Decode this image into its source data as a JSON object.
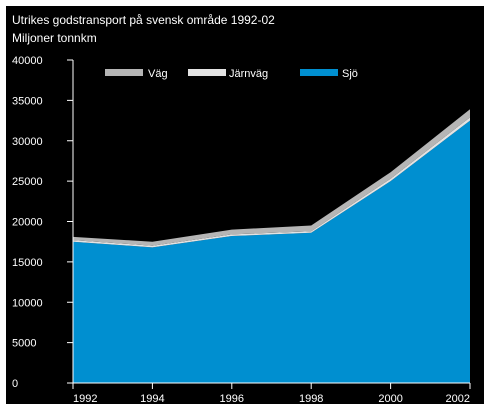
{
  "chart_data": {
    "type": "area",
    "title": "Utrikes godstransport på svensk område 1992-02",
    "subtitle": "Miljoner tonnkm",
    "x": [
      "1992",
      "1994",
      "1996",
      "1998",
      "2000",
      "2002"
    ],
    "ylim": [
      0,
      40000
    ],
    "yticks": [
      0,
      5000,
      10000,
      15000,
      20000,
      25000,
      30000,
      35000,
      40000
    ],
    "ytick_labels": [
      "0",
      "5000",
      "10000",
      "15000",
      "20000",
      "25000",
      "30000",
      "35000",
      "40000"
    ],
    "series": [
      {
        "name": "Sjö",
        "values": [
          17500,
          16800,
          18200,
          18600,
          25000,
          32500
        ]
      },
      {
        "name": "Järnväg",
        "values": [
          200,
          200,
          200,
          200,
          300,
          400
        ]
      },
      {
        "name": "Väg",
        "values": [
          400,
          500,
          600,
          700,
          800,
          1000
        ]
      }
    ],
    "legend_position": "top",
    "grid": false
  },
  "colors": {
    "background": "#000000",
    "text": "#ffffff",
    "axis": "#ffffff",
    "sjo": "#008fd0",
    "jarnvag": "#e3e3e3",
    "vag": "#b5b5b5"
  }
}
